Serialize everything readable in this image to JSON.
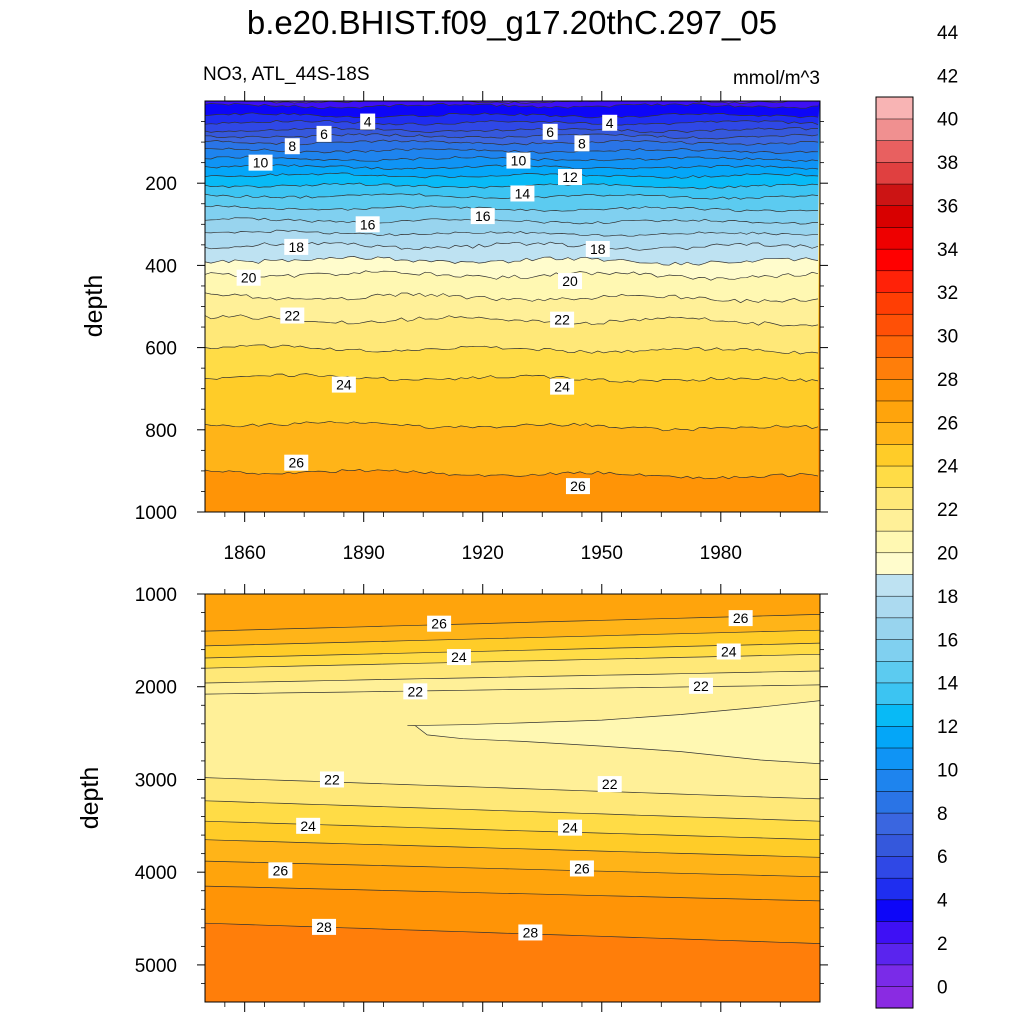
{
  "title": "b.e20.BHIST.f09_g17.20thC.297_05",
  "subtitle_left": "NO3, ATL_44S-18S",
  "subtitle_right": "mmol/m^3",
  "chart_data": [
    {
      "type": "heatmap",
      "panel": "upper",
      "variable": "NO3",
      "region": "ATL_44S-18S",
      "units": "mmol/m^3",
      "ylabel": "depth",
      "xlabel": "",
      "xlim": [
        1850,
        2005
      ],
      "ylim": [
        0,
        1000
      ],
      "y_inverted": true,
      "x_ticks": [
        1860,
        1890,
        1920,
        1950,
        1980
      ],
      "y_ticks": [
        200,
        400,
        600,
        800,
        1000
      ],
      "contour_interval": 2,
      "contour_depths_approx": [
        {
          "level": 4,
          "depth": 35
        },
        {
          "level": 6,
          "depth": 70
        },
        {
          "level": 8,
          "depth": 100
        },
        {
          "level": 10,
          "depth": 140
        },
        {
          "level": 12,
          "depth": 180
        },
        {
          "level": 14,
          "depth": 230
        },
        {
          "level": 16,
          "depth": 290
        },
        {
          "level": 18,
          "depth": 350
        },
        {
          "level": 20,
          "depth": 420
        },
        {
          "level": 22,
          "depth": 530
        },
        {
          "level": 24,
          "depth": 670
        },
        {
          "level": 26,
          "depth": 900
        }
      ],
      "contour_labels": [
        {
          "value": "4",
          "x": 1891,
          "y": 50
        },
        {
          "value": "6",
          "x": 1880,
          "y": 80
        },
        {
          "value": "8",
          "x": 1872,
          "y": 110
        },
        {
          "value": "10",
          "x": 1864,
          "y": 150
        },
        {
          "value": "16",
          "x": 1891,
          "y": 300
        },
        {
          "value": "18",
          "x": 1873,
          "y": 355
        },
        {
          "value": "20",
          "x": 1861,
          "y": 430
        },
        {
          "value": "22",
          "x": 1872,
          "y": 522
        },
        {
          "value": "24",
          "x": 1885,
          "y": 690
        },
        {
          "value": "26",
          "x": 1873,
          "y": 880
        },
        {
          "value": "4",
          "x": 1952,
          "y": 53
        },
        {
          "value": "6",
          "x": 1937,
          "y": 75
        },
        {
          "value": "8",
          "x": 1945,
          "y": 103
        },
        {
          "value": "10",
          "x": 1929,
          "y": 145
        },
        {
          "value": "12",
          "x": 1942,
          "y": 185
        },
        {
          "value": "14",
          "x": 1930,
          "y": 225
        },
        {
          "value": "16",
          "x": 1920,
          "y": 280
        },
        {
          "value": "18",
          "x": 1949,
          "y": 360
        },
        {
          "value": "20",
          "x": 1942,
          "y": 438
        },
        {
          "value": "22",
          "x": 1940,
          "y": 532
        },
        {
          "value": "24",
          "x": 1940,
          "y": 695
        },
        {
          "value": "26",
          "x": 1944,
          "y": 937
        }
      ]
    },
    {
      "type": "heatmap",
      "panel": "lower",
      "ylabel": "depth",
      "xlabel": "",
      "xlim": [
        1850,
        2005
      ],
      "ylim": [
        1000,
        5400
      ],
      "y_inverted": true,
      "y_ticks": [
        1000,
        2000,
        3000,
        4000,
        5000
      ],
      "contour_interval": 2,
      "contour_labels": [
        {
          "value": "26",
          "x": 1909,
          "y": 1320
        },
        {
          "value": "24",
          "x": 1914,
          "y": 1680
        },
        {
          "value": "22",
          "x": 1903,
          "y": 2050
        },
        {
          "value": "22",
          "x": 1882,
          "y": 3000
        },
        {
          "value": "24",
          "x": 1876,
          "y": 3500
        },
        {
          "value": "26",
          "x": 1869,
          "y": 3980
        },
        {
          "value": "28",
          "x": 1880,
          "y": 4590
        },
        {
          "value": "26",
          "x": 1985,
          "y": 1260
        },
        {
          "value": "24",
          "x": 1982,
          "y": 1620
        },
        {
          "value": "22",
          "x": 1975,
          "y": 1990
        },
        {
          "value": "22",
          "x": 1952,
          "y": 3050
        },
        {
          "value": "24",
          "x": 1942,
          "y": 3520
        },
        {
          "value": "26",
          "x": 1945,
          "y": 3960
        },
        {
          "value": "28",
          "x": 1932,
          "y": 4650
        }
      ]
    }
  ],
  "colorbar": {
    "levels": [
      0,
      2,
      4,
      6,
      8,
      10,
      12,
      14,
      16,
      18,
      20,
      22,
      24,
      26,
      28,
      30,
      32,
      34,
      36,
      38,
      40,
      42,
      44
    ],
    "labels": [
      "0",
      "2",
      "4",
      "6",
      "8",
      "10",
      "12",
      "14",
      "16",
      "18",
      "20",
      "22",
      "24",
      "26",
      "28",
      "30",
      "32",
      "34",
      "36",
      "38",
      "40",
      "42",
      "44"
    ],
    "colors": [
      "#8a2be2",
      "#7a2be8",
      "#5a24ee",
      "#3e10f5",
      "#0d06f8",
      "#1f2ef0",
      "#2f48e6",
      "#3558dc",
      "#3a66e0",
      "#2a74e6",
      "#1e84ee",
      "#0f94f5",
      "#04a6f8",
      "#08baf6",
      "#3cc4f2",
      "#5ccbf0",
      "#80d0f0",
      "#98d4ee",
      "#acdaf0",
      "#bee2f2",
      "#fffccc",
      "#fff8b2",
      "#fff098",
      "#ffe878",
      "#ffdc46",
      "#ffcc28",
      "#ffb418",
      "#ffa40c",
      "#ff9406",
      "#ff7e0a",
      "#ff6608",
      "#ff5006",
      "#ff3e04",
      "#ff2208",
      "#ff0000",
      "#ee0000",
      "#d80000",
      "#cc1414",
      "#e04040",
      "#e86060",
      "#f09090",
      "#f8b4b4"
    ]
  }
}
